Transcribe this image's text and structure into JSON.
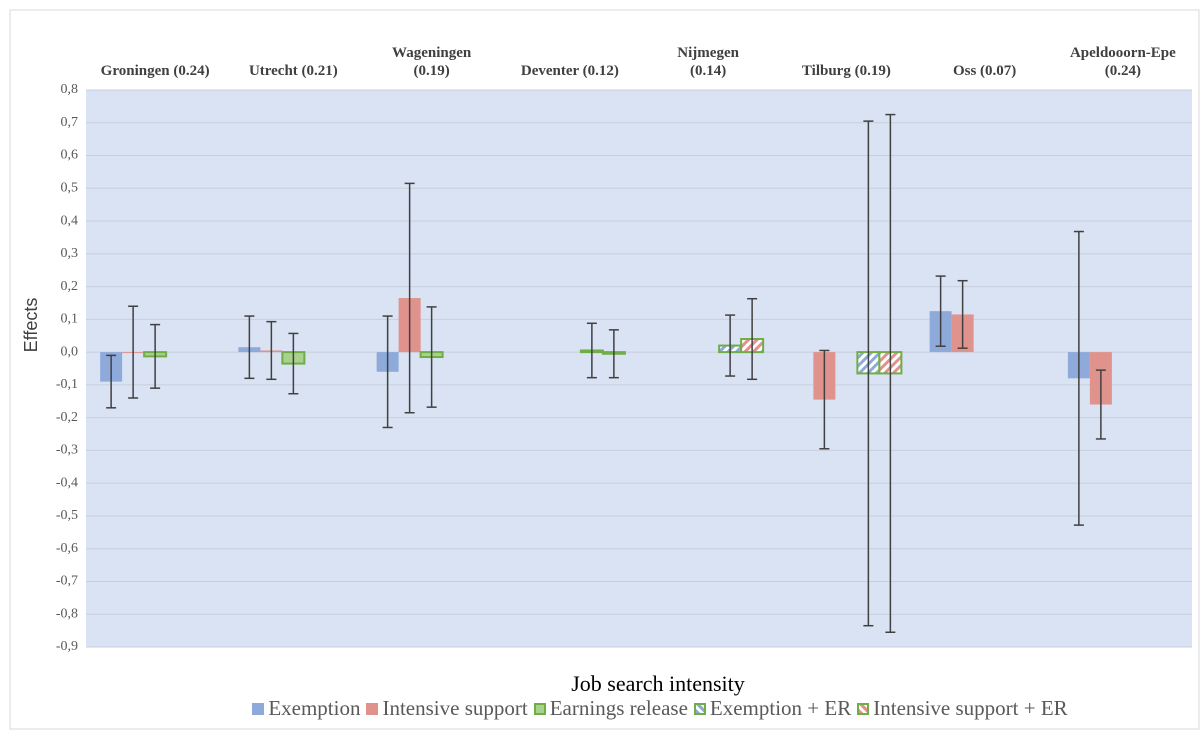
{
  "chart_data": {
    "type": "bar",
    "y_label": "Effects",
    "x_label": "Job search intensity",
    "categories": [
      "Groningen (0.24)",
      "Utrecht (0.21)",
      "Wageningen\n(0.19)",
      "Deventer (0.12)",
      "Nijmegen\n(0.14)",
      "Tilburg (0.19)",
      "Oss (0.07)",
      "Apeldooorn-Epe\n(0.24)"
    ],
    "series": [
      {
        "name": "Exemption",
        "color": "#8eaadb",
        "values": [
          -0.09,
          0.015,
          -0.06,
          null,
          null,
          null,
          0.125,
          -0.08
        ],
        "errors": [
          0.08,
          0.095,
          0.17,
          null,
          null,
          null,
          0.107,
          0.448
        ]
      },
      {
        "name": "Intensive support",
        "color": "#e0928d",
        "values": [
          0.0,
          0.005,
          0.165,
          null,
          null,
          -0.145,
          0.115,
          -0.16
        ],
        "errors": [
          0.14,
          0.088,
          0.35,
          null,
          null,
          0.15,
          0.103,
          0.105
        ]
      },
      {
        "name": "Earnings release",
        "color": "#a9d18e",
        "edgecolor": "#70ad47",
        "values": [
          -0.013,
          -0.035,
          -0.015,
          null,
          null,
          null,
          null,
          null
        ],
        "errors": [
          0.097,
          0.092,
          0.153,
          null,
          null,
          null,
          null,
          null
        ]
      },
      {
        "name": "Exemption + ER",
        "color": "#8eaadb",
        "edgecolor": "#70ad47",
        "hatch": true,
        "values": [
          null,
          null,
          null,
          0.005,
          0.02,
          -0.065,
          null,
          null
        ],
        "errors": [
          null,
          null,
          null,
          0.083,
          0.093,
          0.77,
          null,
          null
        ]
      },
      {
        "name": "Intensive support + ER",
        "color": "#e0928d",
        "edgecolor": "#70ad47",
        "hatch": true,
        "values": [
          null,
          null,
          null,
          -0.005,
          0.04,
          -0.065,
          null,
          null
        ],
        "errors": [
          null,
          null,
          null,
          0.073,
          0.123,
          0.79,
          null,
          null
        ]
      }
    ],
    "ylim": [
      -0.9,
      0.8
    ],
    "yticks": [
      {
        "value": -0.9,
        "label": "-0,9"
      },
      {
        "value": -0.8,
        "label": "-0,8"
      },
      {
        "value": -0.7,
        "label": "-0,7"
      },
      {
        "value": -0.6,
        "label": "-0,6"
      },
      {
        "value": -0.5,
        "label": "-0,5"
      },
      {
        "value": -0.4,
        "label": "-0,4"
      },
      {
        "value": -0.3,
        "label": "-0,3"
      },
      {
        "value": -0.2,
        "label": "-0,2"
      },
      {
        "value": -0.1,
        "label": "-0,1"
      },
      {
        "value": 0,
        "label": "0,0"
      },
      {
        "value": 0.1,
        "label": "0,1"
      },
      {
        "value": 0.2,
        "label": "0,2"
      },
      {
        "value": 0.3,
        "label": "0,3"
      },
      {
        "value": 0.4,
        "label": "0,4"
      },
      {
        "value": 0.5,
        "label": "0,5"
      },
      {
        "value": 0.6,
        "label": "0,6"
      },
      {
        "value": 0.7,
        "label": "0,7"
      },
      {
        "value": 0.8,
        "label": "0,8"
      }
    ],
    "grid": true,
    "plot_background": "#dae3f3",
    "legend": "bottom"
  }
}
